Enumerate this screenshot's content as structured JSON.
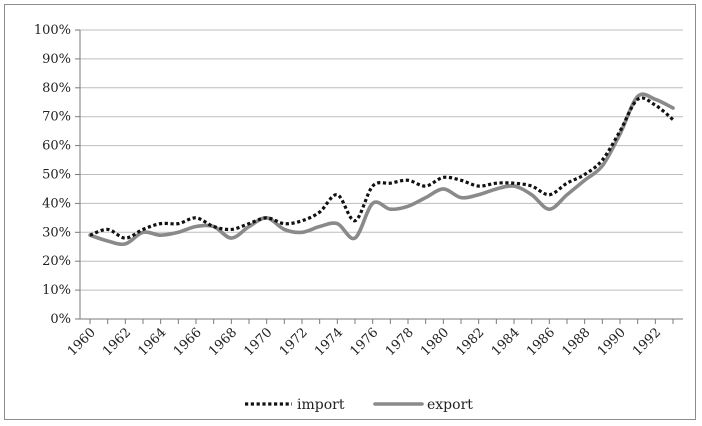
{
  "chart_data": {
    "type": "line",
    "title": "",
    "xlabel": "",
    "ylabel": "",
    "ylim": [
      0,
      1
    ],
    "y_tick_labels": [
      "0%",
      "10%",
      "20%",
      "30%",
      "40%",
      "50%",
      "60%",
      "70%",
      "80%",
      "90%",
      "100%"
    ],
    "x": [
      1960,
      1961,
      1962,
      1963,
      1964,
      1965,
      1966,
      1967,
      1968,
      1969,
      1970,
      1971,
      1972,
      1973,
      1974,
      1975,
      1976,
      1977,
      1978,
      1979,
      1980,
      1981,
      1982,
      1983,
      1984,
      1985,
      1986,
      1987,
      1988,
      1989,
      1990,
      1991,
      1992,
      1993
    ],
    "x_tick_labels": [
      "1960",
      "1962",
      "1964",
      "1966",
      "1968",
      "1970",
      "1972",
      "1974",
      "1976",
      "1978",
      "1980",
      "1982",
      "1984",
      "1986",
      "1988",
      "1990",
      "1992"
    ],
    "grid": "horizontal",
    "legend_position": "bottom",
    "series": [
      {
        "name": "import",
        "style": "dotted",
        "color": "#111111",
        "values": [
          0.29,
          0.31,
          0.28,
          0.31,
          0.33,
          0.33,
          0.35,
          0.32,
          0.31,
          0.33,
          0.35,
          0.33,
          0.34,
          0.37,
          0.43,
          0.34,
          0.46,
          0.47,
          0.48,
          0.46,
          0.49,
          0.48,
          0.46,
          0.47,
          0.47,
          0.46,
          0.43,
          0.47,
          0.5,
          0.55,
          0.65,
          0.76,
          0.74,
          0.69
        ]
      },
      {
        "name": "export",
        "style": "solid",
        "color": "#8a8a8a",
        "values": [
          0.29,
          0.27,
          0.26,
          0.3,
          0.29,
          0.3,
          0.32,
          0.32,
          0.28,
          0.32,
          0.35,
          0.31,
          0.3,
          0.32,
          0.33,
          0.28,
          0.4,
          0.38,
          0.39,
          0.42,
          0.45,
          0.42,
          0.43,
          0.45,
          0.46,
          0.43,
          0.38,
          0.43,
          0.48,
          0.53,
          0.64,
          0.77,
          0.76,
          0.73
        ]
      }
    ]
  }
}
